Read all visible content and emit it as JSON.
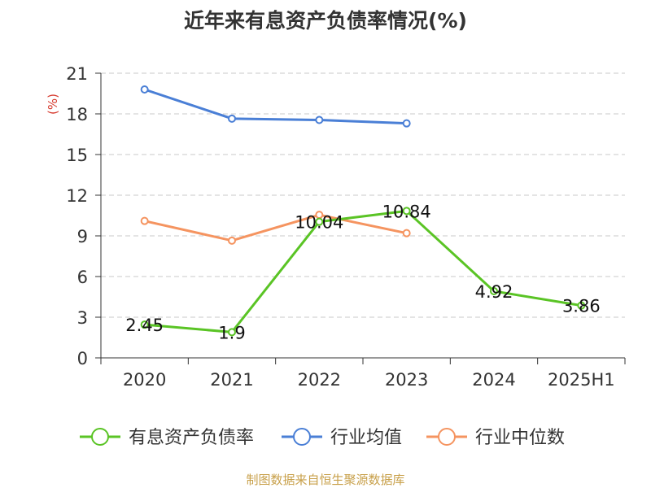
{
  "chart_data": {
    "type": "line",
    "title": "近年来有息资产负债率情况(%)",
    "ylabel": "(%)",
    "categories": [
      "2020",
      "2021",
      "2022",
      "2023",
      "2024",
      "2025H1"
    ],
    "ylim": [
      0,
      21
    ],
    "yticks": [
      "0",
      "3",
      "6",
      "9",
      "12",
      "15",
      "18",
      "21"
    ],
    "grid": true,
    "legend_position": "bottom",
    "series": [
      {
        "name": "有息资产负债率",
        "color": "#5ac425",
        "values": [
          2.45,
          1.9,
          10.04,
          10.84,
          4.92,
          3.86
        ],
        "labels": [
          "2.45",
          "1.9",
          "10.04",
          "10.84",
          "4.92",
          "3.86"
        ]
      },
      {
        "name": "行业均值",
        "color": "#4a7fd6",
        "values": [
          19.8,
          17.65,
          17.55,
          17.3,
          null,
          null
        ]
      },
      {
        "name": "行业中位数",
        "color": "#f59460",
        "values": [
          10.1,
          8.65,
          10.55,
          9.2,
          null,
          null
        ]
      }
    ]
  },
  "source": "制图数据来自恒生聚源数据库"
}
